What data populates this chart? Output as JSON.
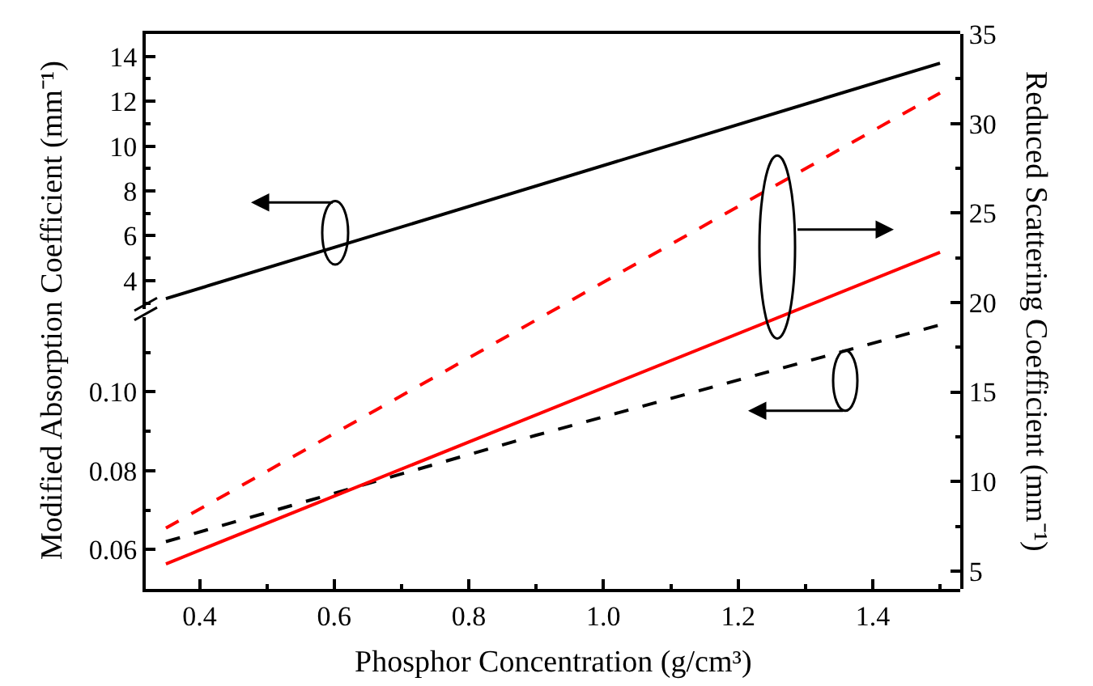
{
  "chart_data": [
    {
      "type": "line",
      "tick_labels": "y",
      "grid": false,
      "xlim": [
        0.32,
        1.53
      ],
      "ylim": [
        2.75,
        15
      ],
      "yticks": [
        4,
        6,
        8,
        10,
        12,
        14
      ],
      "series": [
        {
          "color": "#000000",
          "line_style": "solid",
          "x": [
            0.35,
            1.5
          ],
          "values": [
            3.2,
            13.7
          ]
        }
      ]
    },
    {
      "type": "line",
      "grid": false,
      "xlabel": "Phosphor Concentration (g/cm³)",
      "ylabel": "Modified Absorption Coefficient (mm⁻¹)",
      "y2label": "Reduced Scattering Coefficient (mm⁻¹)",
      "xlim": [
        0.32,
        1.53
      ],
      "xticks": [
        {
          "value": 0.4,
          "label": "0.4"
        },
        {
          "value": 0.6,
          "label": "0.6"
        },
        {
          "value": 0.8,
          "label": "0.8"
        },
        {
          "value": 1.0,
          "label": "1.0"
        },
        {
          "value": 1.2,
          "label": "1.2"
        },
        {
          "value": 1.4,
          "label": "1.4"
        }
      ],
      "ylim": [
        0.05,
        0.119
      ],
      "yticks": [
        {
          "value": 0.06,
          "label": "0.06"
        },
        {
          "value": 0.08,
          "label": "0.08"
        },
        {
          "value": 0.1,
          "label": "0.10"
        }
      ],
      "y2lim": [
        4,
        35
      ],
      "y2ticks": [
        5,
        10,
        15,
        20,
        25,
        30,
        35
      ],
      "series": [
        {
          "color": "#000000",
          "line_style": "dashed",
          "x": [
            0.35,
            0.9,
            1.5
          ],
          "values": [
            0.062,
            0.089,
            0.117
          ]
        },
        {
          "color": "#ff0000",
          "line_style": "solid",
          "axis": "y2",
          "x": [
            0.35,
            1.5
          ],
          "values": [
            5.4,
            22.8
          ]
        },
        {
          "color": "#ff0000",
          "line_style": "dashed",
          "axis": "y2",
          "x": [
            0.35,
            1.5
          ],
          "values": [
            7.4,
            31.7
          ]
        }
      ]
    }
  ]
}
